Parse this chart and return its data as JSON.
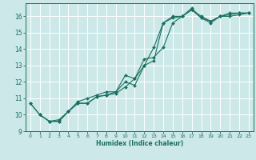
{
  "title": "",
  "xlabel": "Humidex (Indice chaleur)",
  "bg_color": "#cce8e8",
  "grid_color": "#ffffff",
  "line_color": "#1a7060",
  "xlim": [
    -0.5,
    23.5
  ],
  "ylim": [
    9,
    16.8
  ],
  "xticks": [
    0,
    1,
    2,
    3,
    4,
    5,
    6,
    7,
    8,
    9,
    10,
    11,
    12,
    13,
    14,
    15,
    16,
    17,
    18,
    19,
    20,
    21,
    22,
    23
  ],
  "yticks": [
    9,
    10,
    11,
    12,
    13,
    14,
    15,
    16
  ],
  "series": [
    {
      "x": [
        0,
        1,
        2,
        3,
        4,
        5,
        6,
        7,
        8,
        9,
        10,
        11,
        12,
        13,
        14,
        15,
        16,
        17,
        18,
        19,
        20,
        21,
        22,
        23
      ],
      "y": [
        10.7,
        10.0,
        9.6,
        9.6,
        10.2,
        10.7,
        10.7,
        11.1,
        11.2,
        11.3,
        11.7,
        12.2,
        13.0,
        14.1,
        15.6,
        15.9,
        16.0,
        16.5,
        15.9,
        15.7,
        16.0,
        16.1,
        16.2,
        16.2
      ]
    },
    {
      "x": [
        0,
        1,
        2,
        3,
        4,
        5,
        6,
        7,
        8,
        9,
        10,
        11,
        12,
        13,
        14,
        15,
        16,
        17,
        18,
        19,
        20,
        21,
        22,
        23
      ],
      "y": [
        10.7,
        10.0,
        9.6,
        9.7,
        10.2,
        10.8,
        11.0,
        11.2,
        11.4,
        11.4,
        12.0,
        11.8,
        13.0,
        13.3,
        15.6,
        16.0,
        16.0,
        16.4,
        16.0,
        15.7,
        16.0,
        16.0,
        16.1,
        16.2
      ]
    },
    {
      "x": [
        1,
        2,
        3,
        4,
        5,
        6,
        7,
        8,
        9,
        10,
        11,
        12,
        13,
        14,
        15,
        16,
        17,
        18,
        19,
        20,
        21,
        22,
        23
      ],
      "y": [
        10.0,
        9.6,
        9.6,
        10.2,
        10.7,
        10.7,
        11.1,
        11.2,
        11.4,
        12.4,
        12.2,
        13.4,
        13.5,
        14.1,
        15.6,
        16.0,
        16.4,
        15.9,
        15.6,
        16.0,
        16.2,
        16.2,
        16.2
      ]
    }
  ]
}
